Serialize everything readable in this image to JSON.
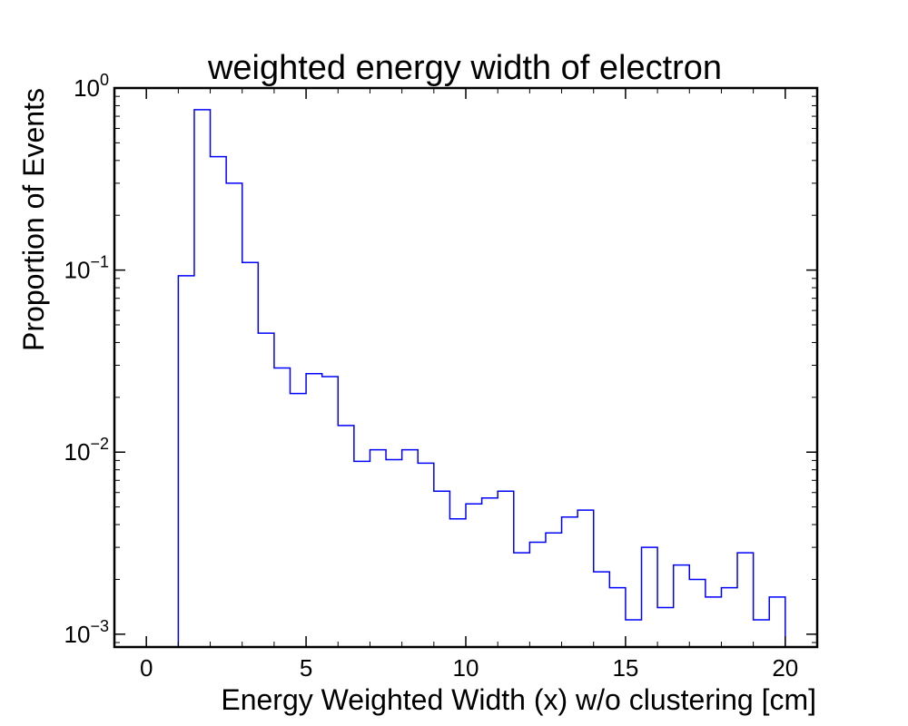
{
  "chart_data": {
    "type": "histogram",
    "title": "weighted energy width of electron",
    "xlabel": "Energy Weighted Width (x) w/o clustering [cm]",
    "ylabel": "Proportion of Events",
    "xlim": [
      -1,
      21
    ],
    "ylim": [
      0.00085,
      1.0
    ],
    "yscale": "log",
    "grid": false,
    "x_ticks": [
      0,
      5,
      10,
      15,
      20
    ],
    "x_tick_labels": [
      "0",
      "5",
      "10",
      "15",
      "20"
    ],
    "y_ticks": [
      0.001,
      0.01,
      0.1,
      1
    ],
    "y_tick_labels": [
      {
        "base": "10",
        "exp": "−3"
      },
      {
        "base": "10",
        "exp": "−2"
      },
      {
        "base": "10",
        "exp": "−1"
      },
      {
        "base": "10",
        "exp": "0"
      }
    ],
    "bin_edges": [
      0,
      0.5,
      1,
      1.5,
      2,
      2.5,
      3,
      3.5,
      4,
      4.5,
      5,
      5.5,
      6,
      6.5,
      7,
      7.5,
      8,
      8.5,
      9,
      9.5,
      10,
      10.5,
      11,
      11.5,
      12,
      12.5,
      13,
      13.5,
      14,
      14.5,
      15,
      15.5,
      16,
      16.5,
      17,
      17.5,
      18,
      18.5,
      19,
      19.5,
      20
    ],
    "values": [
      0,
      0,
      0.093,
      0.76,
      0.42,
      0.3,
      0.11,
      0.045,
      0.029,
      0.021,
      0.027,
      0.026,
      0.014,
      0.0089,
      0.0103,
      0.0091,
      0.0103,
      0.0087,
      0.0061,
      0.0043,
      0.0052,
      0.0056,
      0.0061,
      0.0028,
      0.0032,
      0.0036,
      0.0044,
      0.0048,
      0.0022,
      0.0018,
      0.0012,
      0.003,
      0.0014,
      0.0024,
      0.002,
      0.0016,
      0.0018,
      0.0028,
      0.0012,
      0.0016
    ],
    "line_color": "#0000ff"
  }
}
